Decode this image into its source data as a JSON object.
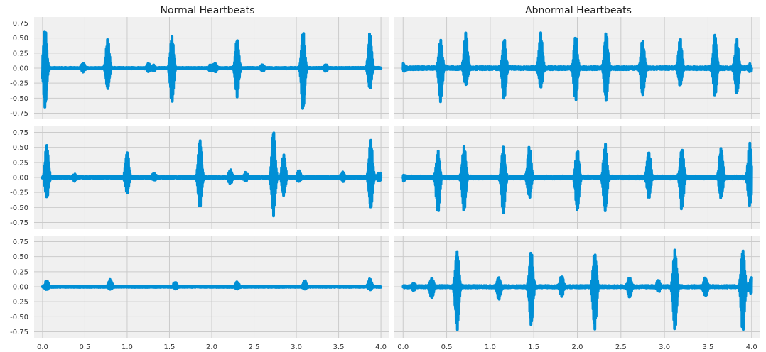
{
  "columns": [
    {
      "title": "Normal Heartbeats"
    },
    {
      "title": "Abnormal Heartbeats"
    }
  ],
  "style": {
    "background": "#f0f0f0",
    "grid": "#cbcbcb",
    "line": "#008fd5"
  },
  "chart_data": {
    "type": "line",
    "layout": "3 rows x 2 columns, shared axes",
    "xlim": [
      -0.1,
      4.1
    ],
    "ylim": [
      -0.85,
      0.85
    ],
    "xticks": [
      0.0,
      0.5,
      1.0,
      1.5,
      2.0,
      2.5,
      3.0,
      3.5,
      4.0
    ],
    "xtick_labels": [
      "0.0",
      "0.5",
      "1.0",
      "1.5",
      "2.0",
      "2.5",
      "3.0",
      "3.5",
      "4.0"
    ],
    "yticks": [
      0.75,
      0.5,
      0.25,
      0.0,
      -0.25,
      -0.5,
      -0.75
    ],
    "ytick_labels": [
      "0.75",
      "0.50",
      "0.25",
      "0.00",
      "-0.25",
      "-0.50",
      "-0.75"
    ],
    "grid": true,
    "x_range": [
      0.0,
      4.0
    ],
    "panels": [
      {
        "column": "Normal Heartbeats",
        "row": 1,
        "noise": 0.012,
        "bursts": [
          [
            0.03,
            0.68,
            -0.68
          ],
          [
            0.48,
            0.08,
            -0.06
          ],
          [
            0.77,
            0.5,
            -0.35
          ],
          [
            1.25,
            0.08,
            -0.06
          ],
          [
            1.31,
            0.05,
            -0.05
          ],
          [
            1.53,
            0.55,
            -0.6
          ],
          [
            1.99,
            0.05,
            -0.05
          ],
          [
            2.04,
            0.08,
            -0.06
          ],
          [
            2.3,
            0.5,
            -0.48
          ],
          [
            2.6,
            0.06,
            -0.05
          ],
          [
            3.08,
            0.63,
            -0.72
          ],
          [
            3.35,
            0.06,
            -0.05
          ],
          [
            3.87,
            0.6,
            -0.35
          ]
        ]
      },
      {
        "column": "Normal Heartbeats",
        "row": 2,
        "noise": 0.018,
        "bursts": [
          [
            0.05,
            0.55,
            -0.35
          ],
          [
            0.38,
            0.05,
            -0.05
          ],
          [
            1.0,
            0.45,
            -0.28
          ],
          [
            1.32,
            0.06,
            -0.06
          ],
          [
            1.86,
            0.65,
            -0.52
          ],
          [
            2.22,
            0.12,
            -0.1
          ],
          [
            2.4,
            0.08,
            -0.06
          ],
          [
            2.73,
            0.8,
            -0.65
          ],
          [
            2.85,
            0.4,
            -0.3
          ],
          [
            3.03,
            0.1,
            -0.08
          ],
          [
            3.55,
            0.08,
            -0.06
          ],
          [
            3.88,
            0.65,
            -0.52
          ],
          [
            3.98,
            0.08,
            -0.06
          ]
        ]
      },
      {
        "column": "Normal Heartbeats",
        "row": 3,
        "noise": 0.01,
        "bursts": [
          [
            0.05,
            0.1,
            -0.05
          ],
          [
            0.8,
            0.12,
            -0.05
          ],
          [
            1.57,
            0.08,
            -0.04
          ],
          [
            2.3,
            0.08,
            -0.04
          ],
          [
            3.1,
            0.1,
            -0.04
          ],
          [
            3.87,
            0.13,
            -0.05
          ]
        ]
      },
      {
        "column": "Abnormal Heartbeats",
        "row": 1,
        "noise": 0.025,
        "bursts": [
          [
            0.0,
            0.08,
            -0.08
          ],
          [
            0.43,
            0.48,
            -0.58
          ],
          [
            0.72,
            0.62,
            -0.3
          ],
          [
            1.16,
            0.5,
            -0.55
          ],
          [
            1.58,
            0.6,
            -0.35
          ],
          [
            1.98,
            0.55,
            -0.56
          ],
          [
            2.33,
            0.62,
            -0.55
          ],
          [
            2.75,
            0.48,
            -0.45
          ],
          [
            3.18,
            0.5,
            -0.3
          ],
          [
            3.58,
            0.58,
            -0.45
          ],
          [
            3.83,
            0.48,
            -0.45
          ],
          [
            3.98,
            0.05,
            -0.05
          ]
        ]
      },
      {
        "column": "Abnormal Heartbeats",
        "row": 2,
        "noise": 0.025,
        "bursts": [
          [
            0.0,
            0.05,
            -0.05
          ],
          [
            0.4,
            0.45,
            -0.6
          ],
          [
            0.7,
            0.53,
            -0.58
          ],
          [
            1.15,
            0.5,
            -0.6
          ],
          [
            1.45,
            0.53,
            -0.35
          ],
          [
            2.0,
            0.47,
            -0.58
          ],
          [
            2.32,
            0.55,
            -0.57
          ],
          [
            2.82,
            0.45,
            -0.37
          ],
          [
            3.2,
            0.5,
            -0.55
          ],
          [
            3.65,
            0.5,
            -0.37
          ],
          [
            3.98,
            0.57,
            -0.5
          ]
        ]
      },
      {
        "column": "Abnormal Heartbeats",
        "row": 3,
        "noise": 0.02,
        "bursts": [
          [
            0.12,
            0.05,
            -0.05
          ],
          [
            0.33,
            0.15,
            -0.2
          ],
          [
            0.62,
            0.6,
            -0.75
          ],
          [
            1.1,
            0.15,
            -0.2
          ],
          [
            1.47,
            0.58,
            -0.65
          ],
          [
            1.82,
            0.18,
            -0.15
          ],
          [
            2.2,
            0.58,
            -0.72
          ],
          [
            2.6,
            0.15,
            -0.18
          ],
          [
            2.93,
            0.1,
            -0.08
          ],
          [
            3.12,
            0.62,
            -0.75
          ],
          [
            3.47,
            0.16,
            -0.17
          ],
          [
            3.9,
            0.62,
            -0.75
          ],
          [
            4.0,
            0.14,
            -0.14
          ]
        ]
      }
    ]
  }
}
